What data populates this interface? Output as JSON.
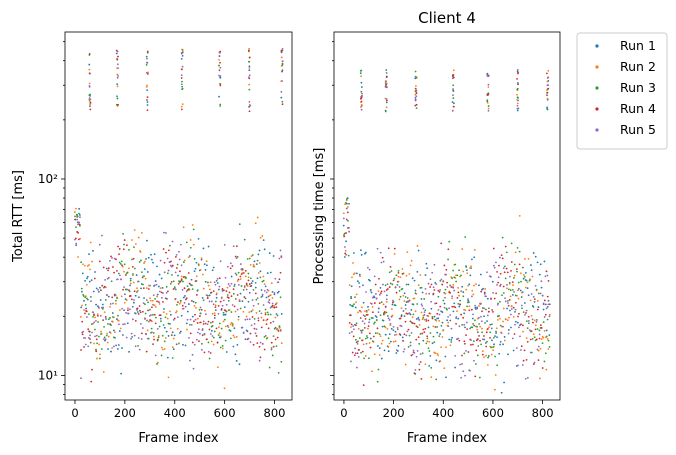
{
  "colors": {
    "Run 1": "#1f77b4",
    "Run 2": "#ff7f0e",
    "Run 3": "#2ca02c",
    "Run 4": "#d62728",
    "Run 5": "#9467bd"
  },
  "chart_data": [
    {
      "type": "scatter",
      "title": "",
      "xlabel": "Frame index",
      "ylabel": "Total RTT [ms]",
      "yscale": "log",
      "xlim": [
        -40,
        870
      ],
      "ylim": [
        7.5,
        560
      ],
      "xticks": [
        0,
        200,
        400,
        600,
        800
      ],
      "yticks": [
        10,
        100
      ],
      "ytick_labels": [
        "10¹",
        "10²"
      ],
      "grid": false,
      "legend": "none",
      "series_names": [
        "Run 1",
        "Run 2",
        "Run 3",
        "Run 4",
        "Run 5"
      ],
      "x_range": [
        0,
        830
      ],
      "clusters": [
        {
          "description": "main band",
          "x_range": [
            0,
            830
          ],
          "y_range": [
            12,
            60
          ]
        },
        {
          "description": "startup spike",
          "x_range": [
            0,
            20
          ],
          "y_range": [
            40,
            75
          ]
        },
        {
          "description": "periodic high outliers (~every 120 frames)",
          "x_values": [
            60,
            170,
            290,
            430,
            580,
            700,
            830
          ],
          "y_range": [
            220,
            460
          ]
        }
      ]
    },
    {
      "type": "scatter",
      "title": "Client 4",
      "xlabel": "Frame index",
      "ylabel": "Processing time [ms]",
      "yscale": "log",
      "xlim": [
        -40,
        870
      ],
      "ylim": [
        7.5,
        560
      ],
      "xticks": [
        0,
        200,
        400,
        600,
        800
      ],
      "yticks": [],
      "grid": false,
      "legend": "outside upper right",
      "series_names": [
        "Run 1",
        "Run 2",
        "Run 3",
        "Run 4",
        "Run 5"
      ],
      "x_range": [
        0,
        830
      ],
      "clusters": [
        {
          "description": "main band",
          "x_range": [
            0,
            830
          ],
          "y_range": [
            10,
            55
          ]
        },
        {
          "description": "startup spike",
          "x_range": [
            0,
            20
          ],
          "y_range": [
            40,
            80
          ]
        },
        {
          "description": "periodic high outliers",
          "x_values": [
            70,
            170,
            290,
            440,
            580,
            700,
            820
          ],
          "y_range": [
            220,
            360
          ]
        }
      ]
    }
  ],
  "legend": {
    "entries": [
      "Run 1",
      "Run 2",
      "Run 3",
      "Run 4",
      "Run 5"
    ]
  }
}
